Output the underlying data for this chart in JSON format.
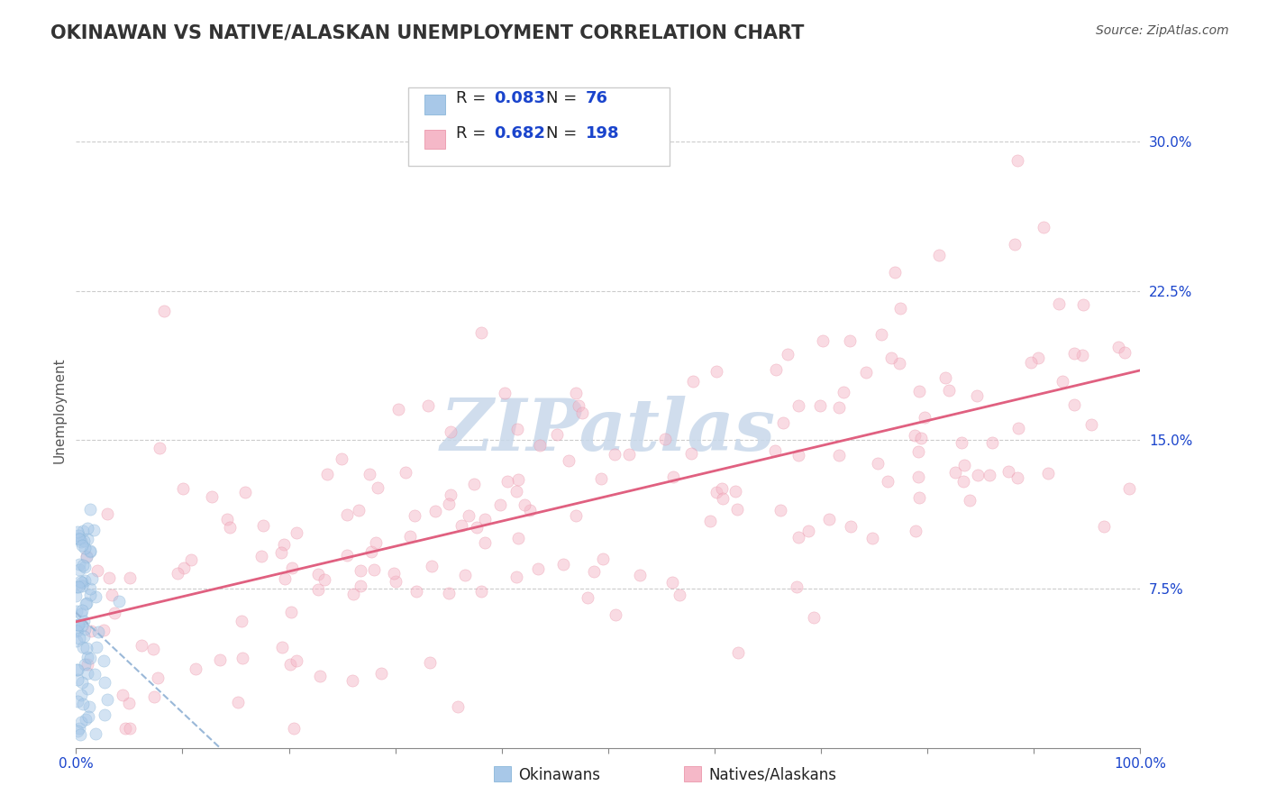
{
  "title": "OKINAWAN VS NATIVE/ALASKAN UNEMPLOYMENT CORRELATION CHART",
  "source_text": "Source: ZipAtlas.com",
  "ylabel": "Unemployment",
  "xlim": [
    0.0,
    1.0
  ],
  "ylim": [
    -0.005,
    0.335
  ],
  "xticks": [
    0.0,
    0.1,
    0.2,
    0.3,
    0.4,
    0.5,
    0.6,
    0.7,
    0.8,
    0.9,
    1.0
  ],
  "xtick_labels": [
    "0.0%",
    "",
    "",
    "",
    "",
    "",
    "",
    "",
    "",
    "",
    "100.0%"
  ],
  "yticks": [
    0.075,
    0.15,
    0.225,
    0.3
  ],
  "ytick_labels": [
    "7.5%",
    "15.0%",
    "22.5%",
    "30.0%"
  ],
  "okinawan_color": "#a8c8e8",
  "okinawan_edge": "#7aadd4",
  "native_color": "#f5b8c8",
  "native_edge": "#e88aa0",
  "regression_blue_color": "#9ab8d8",
  "regression_pink_color": "#e06080",
  "watermark_text": "ZIPatlas",
  "watermark_color": "#c8d8ea",
  "r_okinawan": 0.083,
  "n_okinawan": 76,
  "r_native": 0.682,
  "n_native": 198,
  "background_color": "#ffffff",
  "grid_color": "#cccccc",
  "title_fontsize": 15,
  "axis_label_fontsize": 11,
  "tick_fontsize": 11,
  "legend_fontsize": 13,
  "source_fontsize": 10,
  "legend_value_color": "#2255cc",
  "scatter_alpha": 0.5,
  "scatter_size": 90,
  "bottom_labels": [
    "Okinawans",
    "Natives/Alaskans"
  ],
  "bottom_label_colors": [
    "#6baed6",
    "#f08090"
  ]
}
